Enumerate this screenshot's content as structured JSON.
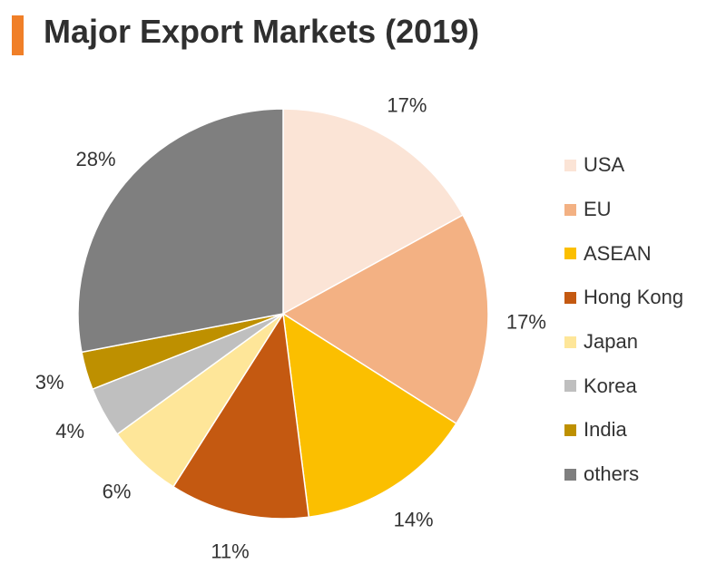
{
  "title": "Major Export Markets (2019)",
  "accent_color": "#f07f28",
  "chart_data": {
    "type": "pie",
    "title": "Major Export Markets (2019)",
    "categories": [
      "USA",
      "EU",
      "ASEAN",
      "Hong Kong",
      "Japan",
      "Korea",
      "India",
      "others"
    ],
    "values": [
      17,
      17,
      14,
      11,
      6,
      4,
      3,
      28
    ],
    "labels": [
      "17%",
      "17%",
      "14%",
      "11%",
      "6%",
      "4%",
      "3%",
      "28%"
    ],
    "colors": [
      "#fbe4d6",
      "#f3b183",
      "#fbbf00",
      "#c45911",
      "#fee699",
      "#bfbfbf",
      "#be9000",
      "#7f7f7f"
    ],
    "legend_position": "right",
    "start": "12 o'clock",
    "direction": "clockwise"
  }
}
